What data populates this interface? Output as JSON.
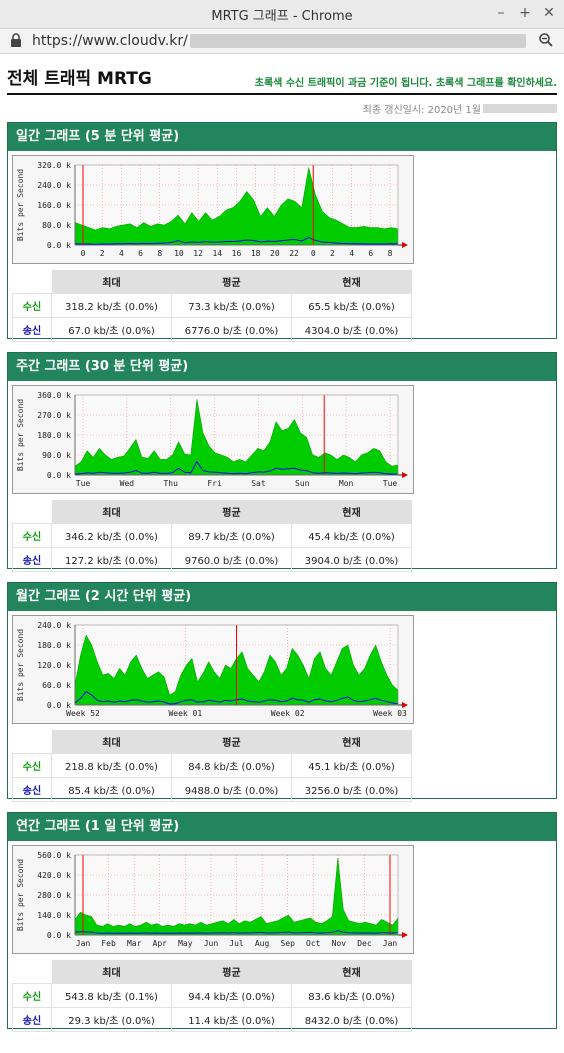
{
  "window": {
    "title": "MRTG 그래프 - Chrome"
  },
  "address": {
    "url": "https://www.cloudv.kr/"
  },
  "page": {
    "title": "전체 트래픽 MRTG",
    "note": "초록색 수신 트래픽이 과금 기준이 됩니다. 초록색 그래프를 확인하세요.",
    "updated": "최종 갱신일시: 2020년 1월"
  },
  "colors": {
    "inbound": "#00cc00",
    "outbound": "#0000ff",
    "accent": "#23855e",
    "marker": "#ff0000"
  },
  "headers": {
    "max": "최대",
    "avg": "평균",
    "cur": "현재",
    "in": "수신",
    "out": "송신"
  },
  "sections": [
    {
      "title": "일간 그래프 (5 분 단위 평균)",
      "stats": {
        "in": {
          "max": "318.2 kb/초 (0.0%)",
          "avg": "73.3 kb/초 (0.0%)",
          "cur": "65.5 kb/초 (0.0%)"
        },
        "out": {
          "max": "67.0 kb/초 (0.0%)",
          "avg": "6776.0 b/초 (0.0%)",
          "cur": "4304.0 b/초 (0.0%)"
        }
      },
      "chart_data": {
        "type": "area",
        "ylabel": "Bits per Second",
        "yticks": [
          "320.0 k",
          "240.0 k",
          "160.0 k",
          "80.0 k",
          "0.0 k"
        ],
        "ylim": [
          0,
          320000
        ],
        "xticks": [
          "0",
          "2",
          "4",
          "6",
          "8",
          "10",
          "12",
          "14",
          "16",
          "18",
          "20",
          "22",
          "0",
          "2",
          "4",
          "6",
          "8"
        ],
        "markers": [
          0,
          12
        ],
        "series": [
          {
            "name": "수신",
            "values": [
              90,
              80,
              70,
              60,
              70,
              65,
              75,
              80,
              85,
              70,
              90,
              75,
              85,
              80,
              95,
              120,
              85,
              130,
              95,
              130,
              100,
              115,
              140,
              150,
              175,
              215,
              180,
              115,
              150,
              115,
              160,
              185,
              175,
              150,
              310,
              200,
              135,
              110,
              100,
              85,
              70,
              70,
              75,
              70,
              70,
              65,
              70,
              65
            ]
          },
          {
            "name": "송신",
            "values": [
              5,
              4,
              4,
              3,
              4,
              4,
              5,
              5,
              6,
              5,
              6,
              6,
              7,
              8,
              10,
              18,
              9,
              12,
              10,
              14,
              11,
              12,
              14,
              14,
              16,
              20,
              18,
              12,
              15,
              14,
              17,
              20,
              22,
              16,
              30,
              18,
              12,
              10,
              8,
              6,
              5,
              5,
              4,
              4,
              4,
              4,
              5,
              4
            ]
          }
        ]
      }
    },
    {
      "title": "주간 그래프 (30 분 단위 평균)",
      "stats": {
        "in": {
          "max": "346.2 kb/초 (0.0%)",
          "avg": "89.7 kb/초 (0.0%)",
          "cur": "45.4 kb/초 (0.0%)"
        },
        "out": {
          "max": "127.2 kb/초 (0.0%)",
          "avg": "9760.0 b/초 (0.0%)",
          "cur": "3904.0 b/초 (0.0%)"
        }
      },
      "chart_data": {
        "type": "area",
        "ylabel": "Bits per Second",
        "yticks": [
          "360.0 k",
          "270.0 k",
          "180.0 k",
          "90.0 k",
          "0.0 k"
        ],
        "ylim": [
          0,
          360000
        ],
        "xticks": [
          "Tue",
          "Wed",
          "Thu",
          "Fri",
          "Sat",
          "Sun",
          "Mon",
          "Tue"
        ],
        "markers": [
          5.5
        ],
        "series": [
          {
            "name": "수신",
            "values": [
              40,
              60,
              110,
              80,
              120,
              90,
              70,
              80,
              85,
              120,
              160,
              80,
              75,
              110,
              70,
              70,
              90,
              150,
              95,
              90,
              340,
              190,
              130,
              100,
              90,
              80,
              60,
              70,
              60,
              90,
              120,
              110,
              150,
              240,
              200,
              210,
              250,
              190,
              170,
              90,
              80,
              100,
              90,
              70,
              90,
              80,
              60,
              90,
              100,
              120,
              110,
              60,
              40,
              45
            ]
          },
          {
            "name": "송신",
            "values": [
              4,
              6,
              10,
              8,
              12,
              10,
              8,
              8,
              9,
              12,
              20,
              8,
              8,
              12,
              7,
              7,
              10,
              30,
              12,
              10,
              60,
              20,
              14,
              12,
              10,
              8,
              6,
              8,
              6,
              10,
              14,
              12,
              18,
              30,
              26,
              28,
              30,
              22,
              20,
              10,
              8,
              10,
              9,
              7,
              9,
              8,
              6,
              9,
              10,
              12,
              10,
              6,
              4,
              4
            ]
          }
        ]
      }
    },
    {
      "title": "월간 그래프 (2 시간 단위 평균)",
      "stats": {
        "in": {
          "max": "218.8 kb/초 (0.0%)",
          "avg": "84.8 kb/초 (0.0%)",
          "cur": "45.1 kb/초 (0.0%)"
        },
        "out": {
          "max": "85.4 kb/초 (0.0%)",
          "avg": "9488.0 b/초 (0.0%)",
          "cur": "3256.0 b/초 (0.0%)"
        }
      },
      "chart_data": {
        "type": "area",
        "ylabel": "Bits per Second",
        "yticks": [
          "240.0 k",
          "180.0 k",
          "120.0 k",
          "60.0 k",
          "0.0 k"
        ],
        "ylim": [
          0,
          240000
        ],
        "xticks": [
          "Week 52",
          "Week 01",
          "Week 02",
          "Week 03"
        ],
        "markers": [
          1.5
        ],
        "series": [
          {
            "name": "수신",
            "values": [
              60,
              150,
              210,
              180,
              130,
              90,
              95,
              80,
              110,
              90,
              130,
              150,
              110,
              80,
              90,
              100,
              85,
              30,
              40,
              90,
              120,
              140,
              70,
              95,
              130,
              100,
              80,
              120,
              110,
              140,
              160,
              110,
              90,
              70,
              100,
              150,
              130,
              90,
              110,
              170,
              150,
              120,
              80,
              140,
              160,
              110,
              90,
              130,
              170,
              180,
              120,
              90,
              110,
              150,
              180,
              130,
              90,
              60,
              45
            ]
          },
          {
            "name": "송신",
            "values": [
              6,
              20,
              40,
              30,
              14,
              10,
              12,
              8,
              12,
              10,
              14,
              16,
              12,
              8,
              10,
              12,
              9,
              3,
              4,
              10,
              14,
              16,
              8,
              10,
              14,
              12,
              8,
              14,
              12,
              16,
              18,
              12,
              10,
              8,
              12,
              16,
              14,
              10,
              12,
              20,
              16,
              14,
              8,
              16,
              18,
              12,
              10,
              14,
              20,
              24,
              14,
              10,
              12,
              16,
              20,
              14,
              10,
              6,
              4
            ]
          }
        ]
      }
    },
    {
      "title": "연간 그래프 (1 일 단위 평균)",
      "stats": {
        "in": {
          "max": "543.8 kb/초 (0.1%)",
          "avg": "94.4 kb/초 (0.0%)",
          "cur": "83.6 kb/초 (0.0%)"
        },
        "out": {
          "max": "29.3 kb/초 (0.0%)",
          "avg": "11.4 kb/초 (0.0%)",
          "cur": "8432.0 b/초 (0.0%)"
        }
      },
      "chart_data": {
        "type": "area",
        "ylabel": "Bits per Second",
        "yticks": [
          "560.0 k",
          "420.0 k",
          "280.0 k",
          "140.0 k",
          "0.0 k"
        ],
        "ylim": [
          0,
          560000
        ],
        "xticks": [
          "Jan",
          "Feb",
          "Mar",
          "Apr",
          "May",
          "Jun",
          "Jul",
          "Aug",
          "Sep",
          "Oct",
          "Nov",
          "Dec",
          "Jan"
        ],
        "markers": [
          0,
          12
        ],
        "series": [
          {
            "name": "수신",
            "values": [
              110,
              160,
              140,
              130,
              70,
              60,
              80,
              60,
              70,
              60,
              80,
              60,
              70,
              90,
              70,
              80,
              60,
              70,
              60,
              80,
              70,
              80,
              70,
              90,
              70,
              80,
              90,
              100,
              80,
              110,
              80,
              100,
              90,
              110,
              130,
              80,
              90,
              100,
              120,
              140,
              90,
              100,
              110,
              120,
              90,
              80,
              100,
              130,
              540,
              180,
              100,
              90,
              80,
              90,
              80,
              70,
              110,
              90,
              70,
              120
            ]
          },
          {
            "name": "송신",
            "values": [
              20,
              24,
              22,
              20,
              14,
              12,
              14,
              12,
              13,
              12,
              14,
              12,
              13,
              15,
              13,
              14,
              12,
              13,
              12,
              14,
              13,
              14,
              13,
              15,
              13,
              14,
              15,
              16,
              14,
              17,
              14,
              16,
              15,
              17,
              19,
              14,
              15,
              16,
              18,
              20,
              15,
              16,
              17,
              18,
              15,
              14,
              16,
              19,
              29,
              20,
              16,
              15,
              14,
              15,
              14,
              13,
              17,
              15,
              13,
              18
            ]
          }
        ]
      }
    }
  ]
}
